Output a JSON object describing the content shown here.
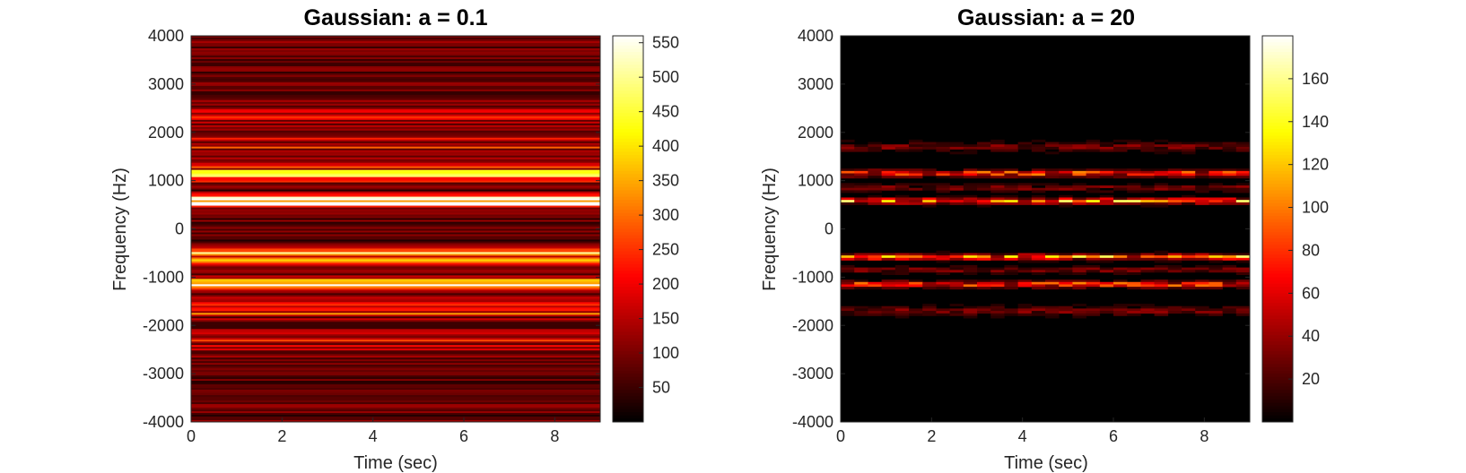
{
  "chart_data": [
    {
      "type": "heatmap",
      "title": "Gaussian: a = 0.1",
      "xlabel": "Time (sec)",
      "ylabel": "Frequency (Hz)",
      "xlim": [
        0,
        9
      ],
      "ylim": [
        -4000,
        4000
      ],
      "x_ticks": [
        0,
        2,
        4,
        6,
        8
      ],
      "y_ticks": [
        4000,
        3000,
        2000,
        1000,
        0,
        -1000,
        -2000,
        -3000,
        -4000
      ],
      "colormap": "hot",
      "colorbar": {
        "limits": [
          0,
          560
        ],
        "ticks": [
          50,
          100,
          150,
          200,
          250,
          300,
          350,
          400,
          450,
          500,
          550
        ]
      },
      "bands": [
        {
          "freq": 1150,
          "width": 130,
          "intensity": 0.85
        },
        {
          "freq": -1150,
          "width": 130,
          "intensity": 0.85
        },
        {
          "freq": 580,
          "width": 120,
          "intensity": 0.9
        },
        {
          "freq": -580,
          "width": 120,
          "intensity": 0.9
        },
        {
          "freq": 1700,
          "width": 180,
          "intensity": 0.35
        },
        {
          "freq": -1700,
          "width": 180,
          "intensity": 0.35
        },
        {
          "freq": 2300,
          "width": 200,
          "intensity": 0.2
        },
        {
          "freq": -2300,
          "width": 200,
          "intensity": 0.2
        }
      ],
      "time_stationary": true,
      "background_intensity": 0.18
    },
    {
      "type": "heatmap",
      "title": "Gaussian: a = 20",
      "xlabel": "Time (sec)",
      "ylabel": "Frequency (Hz)",
      "xlim": [
        0,
        9
      ],
      "ylim": [
        -4000,
        4000
      ],
      "x_ticks": [
        0,
        2,
        4,
        6,
        8
      ],
      "y_ticks": [
        4000,
        3000,
        2000,
        1000,
        0,
        -1000,
        -2000,
        -3000,
        -4000
      ],
      "colormap": "hot",
      "colorbar": {
        "limits": [
          0,
          180
        ],
        "ticks": [
          20,
          40,
          60,
          80,
          100,
          120,
          140,
          160
        ]
      },
      "bands": [
        {
          "freq": 1150,
          "width": 60,
          "intensity": 0.45
        },
        {
          "freq": -1150,
          "width": 60,
          "intensity": 0.45
        },
        {
          "freq": 580,
          "width": 50,
          "intensity": 0.6
        },
        {
          "freq": -580,
          "width": 50,
          "intensity": 0.6
        },
        {
          "freq": 1700,
          "width": 80,
          "intensity": 0.15
        },
        {
          "freq": -1700,
          "width": 80,
          "intensity": 0.15
        },
        {
          "freq": 850,
          "width": 60,
          "intensity": 0.15
        },
        {
          "freq": -850,
          "width": 60,
          "intensity": 0.15
        }
      ],
      "time_stationary": false,
      "background_intensity": 0.03
    }
  ]
}
